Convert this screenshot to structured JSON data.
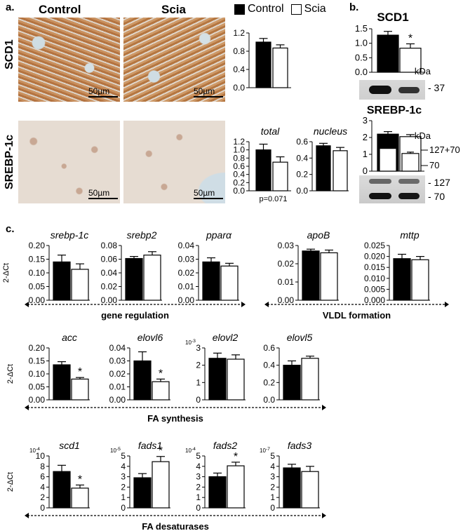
{
  "panels": {
    "a": "a.",
    "b": "b.",
    "c": "c."
  },
  "groups": {
    "control": "Control",
    "scia": "Scia"
  },
  "colors": {
    "control": "#000000",
    "scia": "#ffffff"
  },
  "rows": {
    "scd1": "SCD1",
    "srebp": "SREBP-1c"
  },
  "scale_bar": "50µm",
  "ylabel": "2-ΔCt",
  "groupings": [
    "gene regulation",
    "VLDL formation",
    "FA synthesis",
    "FA desaturases"
  ],
  "western": {
    "scd1_title": "SCD1",
    "srebp_title": "SREBP-1c",
    "kda": "kDa",
    "scd1_band": "- 37",
    "srebp_overlay_labels": [
      "127+70",
      "70"
    ],
    "srebp_bands": [
      "- 127",
      "- 70"
    ]
  },
  "chart_data": [
    {
      "id": "ihc-scd1",
      "type": "bar",
      "title": "",
      "categories": [
        "Control",
        "Scia"
      ],
      "values": [
        1.0,
        0.87
      ],
      "errors": [
        0.08,
        0.07
      ],
      "ylim": [
        0,
        1.2
      ],
      "yticks": [
        "0.0",
        "0.4",
        "0.8",
        "1.2"
      ],
      "sig": [
        false,
        false
      ]
    },
    {
      "id": "ihc-srebp-total",
      "type": "bar",
      "title": "total",
      "categories": [
        "Control",
        "Scia"
      ],
      "values": [
        1.0,
        0.7
      ],
      "errors": [
        0.14,
        0.13
      ],
      "ylim": [
        0,
        1.2
      ],
      "yticks": [
        "0.0",
        "0.2",
        "0.4",
        "0.6",
        "0.8",
        "1.0",
        "1.2"
      ],
      "sig": [
        false,
        false
      ],
      "note": "p=0.071"
    },
    {
      "id": "ihc-srebp-nucleus",
      "type": "bar",
      "title": "nucleus",
      "categories": [
        "Control",
        "Scia"
      ],
      "values": [
        0.55,
        0.49
      ],
      "errors": [
        0.03,
        0.04
      ],
      "ylim": [
        0,
        0.6
      ],
      "yticks": [
        "0.0",
        "0.2",
        "0.4",
        "0.6"
      ],
      "sig": [
        false,
        false
      ]
    },
    {
      "id": "wb-scd1",
      "type": "bar",
      "title": "",
      "categories": [
        "Control",
        "Scia"
      ],
      "values": [
        1.28,
        0.83
      ],
      "errors": [
        0.13,
        0.15
      ],
      "ylim": [
        0,
        1.5
      ],
      "yticks": [
        "0.0",
        "0.5",
        "1.0",
        "1.5"
      ],
      "sig": [
        false,
        true
      ]
    },
    {
      "id": "wb-srebp",
      "type": "bar",
      "title": "",
      "categories": [
        "Control",
        "Scia"
      ],
      "values": [
        2.2,
        2.05
      ],
      "errors": [
        0.15,
        0.12
      ],
      "inner_values": [
        1.35,
        1.05
      ],
      "inner_errors": [
        0.08,
        0.08
      ],
      "ylim": [
        0,
        3
      ],
      "yticks": [
        "0",
        "1",
        "2",
        "3"
      ],
      "sig": [
        false,
        false
      ]
    },
    {
      "id": "srebp1c",
      "type": "bar",
      "title": "srebp-1c",
      "categories": [
        "Control",
        "Scia"
      ],
      "values": [
        0.14,
        0.113
      ],
      "errors": [
        0.025,
        0.02
      ],
      "ylim": [
        0,
        0.2
      ],
      "yticks": [
        "0.00",
        "0.05",
        "0.10",
        "0.15",
        "0.20"
      ],
      "sig": [
        false,
        false
      ]
    },
    {
      "id": "srebp2",
      "type": "bar",
      "title": "srebp2",
      "categories": [
        "Control",
        "Scia"
      ],
      "values": [
        0.061,
        0.066
      ],
      "errors": [
        0.003,
        0.005
      ],
      "ylim": [
        0,
        0.08
      ],
      "yticks": [
        "0.00",
        "0.02",
        "0.04",
        "0.06",
        "0.08"
      ],
      "sig": [
        false,
        false
      ]
    },
    {
      "id": "ppara",
      "type": "bar",
      "title": "pparα",
      "categories": [
        "Control",
        "Scia"
      ],
      "values": [
        0.028,
        0.025
      ],
      "errors": [
        0.003,
        0.002
      ],
      "ylim": [
        0,
        0.04
      ],
      "yticks": [
        "0.00",
        "0.01",
        "0.02",
        "0.03",
        "0.04"
      ],
      "sig": [
        false,
        false
      ]
    },
    {
      "id": "apob",
      "type": "bar",
      "title": "apoB",
      "categories": [
        "Control",
        "Scia"
      ],
      "values": [
        0.027,
        0.026
      ],
      "errors": [
        0.001,
        0.0015
      ],
      "ylim": [
        0,
        0.03
      ],
      "yticks": [
        "0.00",
        "0.01",
        "0.02",
        "0.03"
      ],
      "sig": [
        false,
        false
      ]
    },
    {
      "id": "mttp",
      "type": "bar",
      "title": "mttp",
      "categories": [
        "Control",
        "Scia"
      ],
      "values": [
        0.019,
        0.0185
      ],
      "errors": [
        0.002,
        0.0015
      ],
      "ylim": [
        0,
        0.025
      ],
      "yticks": [
        "0.000",
        "0.005",
        "0.010",
        "0.015",
        "0.020",
        "0.025"
      ],
      "sig": [
        false,
        false
      ]
    },
    {
      "id": "acc",
      "type": "bar",
      "title": "acc",
      "categories": [
        "Control",
        "Scia"
      ],
      "values": [
        0.135,
        0.08
      ],
      "errors": [
        0.012,
        0.006
      ],
      "ylim": [
        0,
        0.2
      ],
      "yticks": [
        "0.00",
        "0.05",
        "0.10",
        "0.15",
        "0.20"
      ],
      "sig": [
        false,
        true
      ]
    },
    {
      "id": "elovl6",
      "type": "bar",
      "title": "elovl6",
      "categories": [
        "Control",
        "Scia"
      ],
      "values": [
        0.03,
        0.014
      ],
      "errors": [
        0.007,
        0.002
      ],
      "ylim": [
        0,
        0.04
      ],
      "yticks": [
        "0.00",
        "0.01",
        "0.02",
        "0.03",
        "0.04"
      ],
      "sig": [
        false,
        true
      ]
    },
    {
      "id": "elovl2",
      "type": "bar",
      "title": "elovl2",
      "categories": [
        "Control",
        "Scia"
      ],
      "values": [
        2.4,
        2.35
      ],
      "errors": [
        0.3,
        0.25
      ],
      "ylim": [
        0,
        3
      ],
      "yticks": [
        "0",
        "1",
        "2",
        "3"
      ],
      "exponent": "10-3",
      "sig": [
        false,
        false
      ]
    },
    {
      "id": "elovl5",
      "type": "bar",
      "title": "elovl5",
      "categories": [
        "Control",
        "Scia"
      ],
      "values": [
        0.4,
        0.48
      ],
      "errors": [
        0.05,
        0.025
      ],
      "ylim": [
        0,
        0.6
      ],
      "yticks": [
        "0.0",
        "0.2",
        "0.4",
        "0.6"
      ],
      "sig": [
        false,
        false
      ]
    },
    {
      "id": "scd1",
      "type": "bar",
      "title": "scd1",
      "categories": [
        "Control",
        "Scia"
      ],
      "values": [
        7.0,
        3.8
      ],
      "errors": [
        1.2,
        0.6
      ],
      "ylim": [
        0,
        10
      ],
      "yticks": [
        "0",
        "2",
        "4",
        "6",
        "8",
        "10"
      ],
      "exponent": "10-4",
      "sig": [
        false,
        true
      ]
    },
    {
      "id": "fads1",
      "type": "bar",
      "title": "fads1",
      "categories": [
        "Control",
        "Scia"
      ],
      "values": [
        2.9,
        4.45
      ],
      "errors": [
        0.4,
        0.5
      ],
      "ylim": [
        0,
        5
      ],
      "yticks": [
        "0",
        "1",
        "2",
        "3",
        "4",
        "5"
      ],
      "exponent": "10-5",
      "sig": [
        false,
        true
      ]
    },
    {
      "id": "fads2",
      "type": "bar",
      "title": "fads2",
      "categories": [
        "Control",
        "Scia"
      ],
      "values": [
        3.0,
        4.05
      ],
      "errors": [
        0.35,
        0.35
      ],
      "ylim": [
        0,
        5
      ],
      "yticks": [
        "0",
        "1",
        "2",
        "3",
        "4",
        "5"
      ],
      "exponent": "10-4",
      "sig": [
        false,
        true
      ]
    },
    {
      "id": "fads3",
      "type": "bar",
      "title": "fads3",
      "categories": [
        "Control",
        "Scia"
      ],
      "values": [
        3.85,
        3.5
      ],
      "errors": [
        0.35,
        0.5
      ],
      "ylim": [
        0,
        5
      ],
      "yticks": [
        "0",
        "1",
        "2",
        "3",
        "4",
        "5"
      ],
      "exponent": "10-7",
      "sig": [
        false,
        false
      ]
    }
  ]
}
